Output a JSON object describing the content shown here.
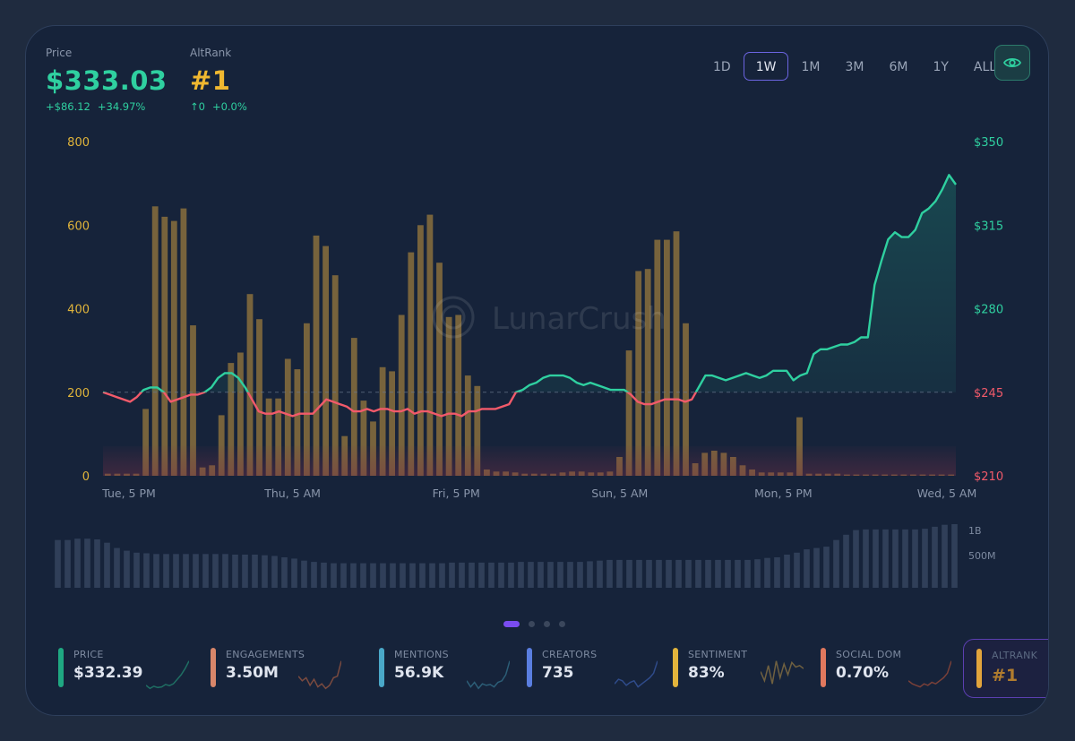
{
  "header": {
    "price_label": "Price",
    "price_value": "$333.03",
    "price_change_abs": "+$86.12",
    "price_change_pct": "+34.97%",
    "altrank_label": "AltRank",
    "altrank_value": "#1",
    "altrank_change_abs": "↑0",
    "altrank_change_pct": "+0.0%"
  },
  "timeframes": {
    "options": [
      "1D",
      "1W",
      "1M",
      "3M",
      "6M",
      "1Y",
      "ALL"
    ],
    "selected": "1W"
  },
  "toggle_icon": "eye-icon",
  "watermark": "LunarCrush",
  "chart_data": {
    "type": "bar",
    "x_tick_labels": [
      "Tue, 5 PM",
      "Thu, 5 AM",
      "Fri, 5 PM",
      "Sun, 5 AM",
      "Mon, 5 PM",
      "Wed, 5 AM"
    ],
    "left_axis": {
      "ticks": [
        "800",
        "600",
        "400",
        "200",
        "0"
      ],
      "ylim": [
        0,
        800
      ],
      "color": "#e0b43a"
    },
    "right_axis": {
      "ticks": [
        "$350",
        "$315",
        "$280",
        "$245",
        "$210"
      ],
      "ylim": [
        210,
        350
      ]
    },
    "reference_price": 245,
    "bars": [
      5,
      5,
      5,
      5,
      160,
      645,
      620,
      610,
      640,
      360,
      20,
      25,
      145,
      270,
      295,
      435,
      375,
      185,
      185,
      280,
      255,
      365,
      575,
      550,
      480,
      95,
      330,
      180,
      130,
      260,
      250,
      385,
      535,
      600,
      625,
      510,
      380,
      385,
      240,
      215,
      15,
      10,
      10,
      8,
      5,
      5,
      5,
      5,
      8,
      10,
      10,
      8,
      8,
      10,
      45,
      300,
      490,
      495,
      565,
      565,
      585,
      365,
      30,
      55,
      60,
      55,
      45,
      25,
      15,
      8,
      8,
      8,
      8,
      140,
      5,
      5,
      5,
      5,
      3,
      3,
      3,
      3,
      3,
      3,
      3,
      3,
      3,
      3,
      3,
      3
    ],
    "price": [
      245,
      244,
      243,
      242,
      241,
      243,
      246,
      247,
      247,
      245,
      241,
      242,
      243,
      244,
      244,
      245,
      247,
      251,
      253,
      253,
      251,
      247,
      242,
      237,
      236,
      236,
      237,
      236,
      235,
      236,
      236,
      236,
      239,
      242,
      241,
      240,
      239,
      237,
      237,
      238,
      237,
      238,
      238,
      237,
      237,
      238,
      236,
      237,
      237,
      236,
      235,
      236,
      236,
      235,
      237,
      237,
      238,
      238,
      238,
      239,
      240,
      245,
      246,
      248,
      249,
      251,
      252,
      252,
      252,
      251,
      249,
      248,
      249,
      248,
      247,
      246,
      246,
      246,
      244,
      241,
      240,
      240,
      241,
      242,
      242,
      242,
      241,
      242,
      247,
      252,
      252,
      251,
      250,
      251,
      252,
      253,
      252,
      251,
      252,
      254,
      254,
      254,
      250,
      252,
      253,
      261,
      263,
      263,
      264,
      265,
      265,
      266,
      268,
      268,
      290,
      300,
      309,
      312,
      310,
      310,
      313,
      320,
      322,
      325,
      330,
      336,
      332
    ]
  },
  "volume_chart": {
    "tick_labels": [
      "1B",
      "500M"
    ],
    "values": [
      0.72,
      0.72,
      0.74,
      0.74,
      0.73,
      0.68,
      0.6,
      0.56,
      0.53,
      0.52,
      0.51,
      0.51,
      0.51,
      0.51,
      0.51,
      0.51,
      0.51,
      0.51,
      0.5,
      0.5,
      0.5,
      0.49,
      0.48,
      0.46,
      0.44,
      0.41,
      0.39,
      0.38,
      0.37,
      0.37,
      0.37,
      0.37,
      0.37,
      0.37,
      0.37,
      0.37,
      0.37,
      0.37,
      0.37,
      0.37,
      0.38,
      0.38,
      0.38,
      0.38,
      0.38,
      0.38,
      0.38,
      0.39,
      0.39,
      0.39,
      0.39,
      0.39,
      0.39,
      0.39,
      0.4,
      0.41,
      0.42,
      0.42,
      0.42,
      0.42,
      0.42,
      0.42,
      0.42,
      0.42,
      0.42,
      0.42,
      0.42,
      0.42,
      0.42,
      0.42,
      0.42,
      0.43,
      0.45,
      0.46,
      0.5,
      0.53,
      0.58,
      0.6,
      0.62,
      0.72,
      0.8,
      0.87,
      0.88,
      0.88,
      0.88,
      0.88,
      0.88,
      0.88,
      0.89,
      0.92,
      0.95,
      0.96
    ]
  },
  "pager": {
    "count": 4,
    "active": 0
  },
  "metrics": [
    {
      "label": "PRICE",
      "value": "$332.39",
      "color": "#1fa882",
      "spark_color": "#1f6e63",
      "spark": [
        0.15,
        0.05,
        0.12,
        0.08,
        0.1,
        0.18,
        0.14,
        0.2,
        0.35,
        0.5,
        0.7,
        0.95
      ]
    },
    {
      "label": "ENGAGEMENTS",
      "value": "3.50M",
      "color": "#d8866a",
      "spark_color": "#7a4a3f",
      "spark": [
        0.45,
        0.3,
        0.4,
        0.15,
        0.35,
        0.1,
        0.2,
        0.05,
        0.15,
        0.4,
        0.45,
        0.95
      ]
    },
    {
      "label": "MENTIONS",
      "value": "56.9K",
      "color": "#4aa8c8",
      "spark_color": "#2c5e77",
      "spark": [
        0.3,
        0.1,
        0.25,
        0.05,
        0.2,
        0.15,
        0.18,
        0.1,
        0.25,
        0.3,
        0.5,
        0.95
      ]
    },
    {
      "label": "CREATORS",
      "value": "735",
      "color": "#5a7ee0",
      "spark_color": "#2f4b8a",
      "spark": [
        0.2,
        0.35,
        0.3,
        0.15,
        0.25,
        0.3,
        0.1,
        0.2,
        0.3,
        0.4,
        0.55,
        0.95
      ]
    },
    {
      "label": "SENTIMENT",
      "value": "83%",
      "color": "#e2b43c",
      "spark_color": "#6f6040",
      "spark": [
        0.6,
        0.3,
        0.8,
        0.2,
        0.95,
        0.4,
        0.85,
        0.5,
        0.9,
        0.75,
        0.8,
        0.7
      ]
    },
    {
      "label": "SOCIAL DOM",
      "value": "0.70%",
      "color": "#e0785e",
      "spark_color": "#7a4038",
      "spark": [
        0.3,
        0.2,
        0.15,
        0.1,
        0.2,
        0.15,
        0.25,
        0.2,
        0.3,
        0.4,
        0.55,
        0.95
      ]
    },
    {
      "label": "ALTRANK",
      "value": "#1",
      "color": "#e2a43c",
      "spark_color": "#6f6040",
      "spark": [
        0.5,
        0.5
      ]
    }
  ]
}
